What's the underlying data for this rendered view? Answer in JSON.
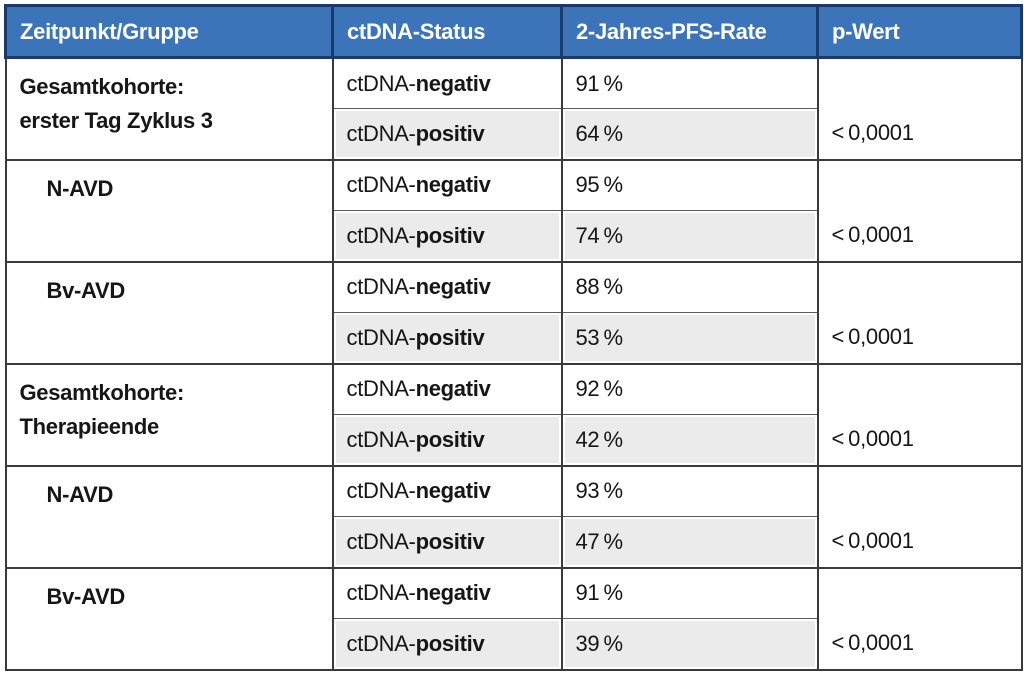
{
  "colors": {
    "header_bg": "#3c74b9",
    "header_border": "#1c3a69",
    "row_shade": "#ebebeb",
    "body_border": "#3a3a3a",
    "text": "#161616",
    "header_text": "#ffffff"
  },
  "table": {
    "columns": [
      "Zeitpunkt/Gruppe",
      "ctDNA-Status",
      "2-Jahres-PFS-Rate",
      "p-Wert"
    ],
    "ctdna_prefix": "ctDNA-",
    "groups": [
      {
        "label": "Gesamtkohorte:",
        "label2": "erster Tag Zyklus 3",
        "rows": [
          {
            "status": "negativ",
            "rate": "91 %"
          },
          {
            "status": "positiv",
            "rate": "64 %"
          }
        ],
        "p_value": "< 0,0001"
      },
      {
        "label": "N-AVD",
        "rows": [
          {
            "status": "negativ",
            "rate": "95 %"
          },
          {
            "status": "positiv",
            "rate": "74 %"
          }
        ],
        "p_value": "< 0,0001"
      },
      {
        "label": "Bv-AVD",
        "rows": [
          {
            "status": "negativ",
            "rate": "88 %"
          },
          {
            "status": "positiv",
            "rate": "53 %"
          }
        ],
        "p_value": "< 0,0001"
      },
      {
        "label": "Gesamtkohorte:",
        "label2": "Therapieende",
        "rows": [
          {
            "status": "negativ",
            "rate": "92 %"
          },
          {
            "status": "positiv",
            "rate": "42 %"
          }
        ],
        "p_value": "< 0,0001"
      },
      {
        "label": "N-AVD",
        "rows": [
          {
            "status": "negativ",
            "rate": "93 %"
          },
          {
            "status": "positiv",
            "rate": "47 %"
          }
        ],
        "p_value": "< 0,0001"
      },
      {
        "label": "Bv-AVD",
        "rows": [
          {
            "status": "negativ",
            "rate": "91 %"
          },
          {
            "status": "positiv",
            "rate": "39 %"
          }
        ],
        "p_value": "< 0,0001"
      }
    ]
  },
  "chart_data": {
    "type": "table",
    "title": "",
    "columns": [
      "Zeitpunkt/Gruppe",
      "ctDNA-Status",
      "2-Jahres-PFS-Rate",
      "p-Wert"
    ],
    "rows": [
      [
        "Gesamtkohorte: erster Tag Zyklus 3",
        "ctDNA-negativ",
        "91%",
        "<0,0001"
      ],
      [
        "Gesamtkohorte: erster Tag Zyklus 3",
        "ctDNA-positiv",
        "64%",
        "<0,0001"
      ],
      [
        "N-AVD",
        "ctDNA-negativ",
        "95%",
        "<0,0001"
      ],
      [
        "N-AVD",
        "ctDNA-positiv",
        "74%",
        "<0,0001"
      ],
      [
        "Bv-AVD",
        "ctDNA-negativ",
        "88%",
        "<0,0001"
      ],
      [
        "Bv-AVD",
        "ctDNA-positiv",
        "53%",
        "<0,0001"
      ],
      [
        "Gesamtkohorte: Therapieende",
        "ctDNA-negativ",
        "92%",
        "<0,0001"
      ],
      [
        "Gesamtkohorte: Therapieende",
        "ctDNA-positiv",
        "42%",
        "<0,0001"
      ],
      [
        "N-AVD",
        "ctDNA-negativ",
        "93%",
        "<0,0001"
      ],
      [
        "N-AVD",
        "ctDNA-positiv",
        "47%",
        "<0,0001"
      ],
      [
        "Bv-AVD",
        "ctDNA-negativ",
        "91%",
        "<0,0001"
      ],
      [
        "Bv-AVD",
        "ctDNA-positiv",
        "39%",
        "<0,0001"
      ]
    ],
    "pfs_percent_values": [
      91,
      64,
      95,
      74,
      88,
      53,
      92,
      42,
      93,
      47,
      91,
      39
    ]
  }
}
